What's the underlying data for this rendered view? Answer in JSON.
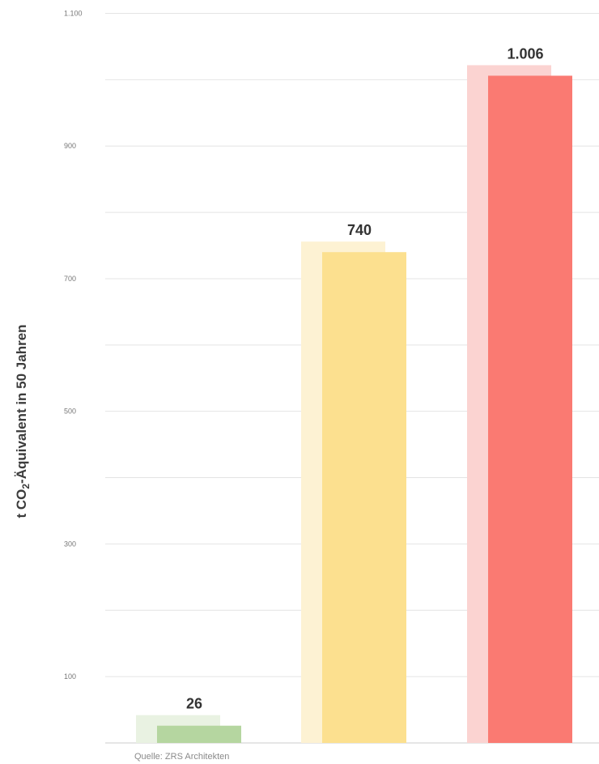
{
  "chart_data": {
    "type": "bar",
    "categories": [
      "",
      "",
      ""
    ],
    "values": [
      26,
      740,
      1006
    ],
    "value_labels": [
      "26",
      "740",
      "1.006"
    ],
    "colors": [
      "#b5d6a0",
      "#fce08f",
      "#fa7a72"
    ],
    "shadow_colors": [
      "#e9f2e2",
      "#fdf2d3",
      "#fbd3d1"
    ],
    "yticks": [
      100,
      300,
      500,
      700,
      900,
      1100
    ],
    "ytick_labels": [
      "100",
      "300",
      "500",
      "700",
      "900",
      "1.100"
    ],
    "ylabel_parts": {
      "pre": "t CO",
      "sub": "2",
      "post": "-Äquivalent in 50 Jahren"
    },
    "ylim": [
      0,
      1100
    ],
    "grid": true,
    "legend": "none"
  },
  "source_note": "Quelle: ZRS Architekten"
}
